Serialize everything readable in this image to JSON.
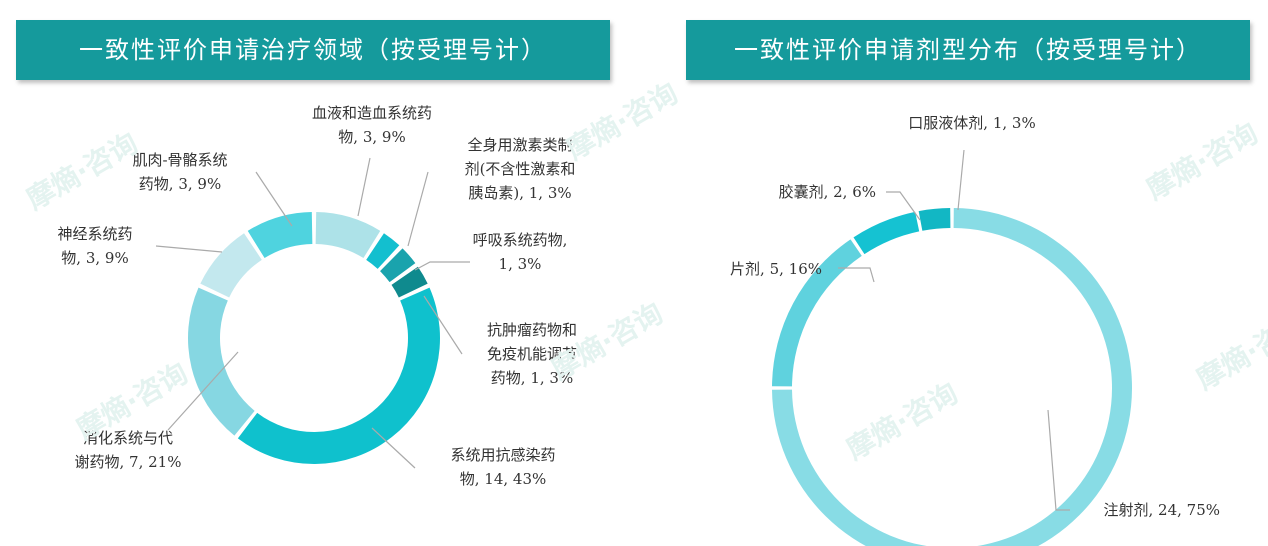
{
  "colors": {
    "banner": "#159a9c",
    "left_slices": [
      "#ade2e8",
      "#13bfcf",
      "#1aa3ad",
      "#0f8a8e",
      "#0fc1cd",
      "#86d7e2",
      "#c3e8ee",
      "#4fd3df"
    ],
    "right_slices": [
      "#88dce5",
      "#5fd2de",
      "#15c2d2",
      "#12b7c4"
    ],
    "leader": "#aaaaaa",
    "watermark": "#e4f3f0"
  },
  "watermark": {
    "text": "摩熵·咨询"
  },
  "chart_data": [
    {
      "type": "pie",
      "donut": true,
      "title": "一致性评价申请治疗领域（按受理号计）",
      "slices": [
        {
          "label_lines": [
            "血液和造血系统药",
            "物, 3, 9%"
          ],
          "value": 3,
          "percent": 9
        },
        {
          "label_lines": [
            "全身用激素类制",
            "剂(不含性激素和",
            "胰岛素), 1, 3%"
          ],
          "value": 1,
          "percent": 3
        },
        {
          "label_lines": [
            "呼吸系统药物,",
            "1, 3%"
          ],
          "value": 1,
          "percent": 3
        },
        {
          "label_lines": [
            "抗肿瘤药物和",
            "免疫机能调节",
            "药物, 1, 3%"
          ],
          "value": 1,
          "percent": 3
        },
        {
          "label_lines": [
            "系统用抗感染药",
            "物, 14, 43%"
          ],
          "value": 14,
          "percent": 43
        },
        {
          "label_lines": [
            "消化系统与代",
            "谢药物, 7, 21%"
          ],
          "value": 7,
          "percent": 21
        },
        {
          "label_lines": [
            "神经系统药",
            "物, 3, 9%"
          ],
          "value": 3,
          "percent": 9
        },
        {
          "label_lines": [
            "肌肉-骨骼系统",
            "药物, 3, 9%"
          ],
          "value": 3,
          "percent": 9
        }
      ]
    },
    {
      "type": "pie",
      "donut": true,
      "title": "一致性评价申请剂型分布（按受理号计）",
      "slices": [
        {
          "label_lines": [
            "注射剂, 24, 75%"
          ],
          "value": 24,
          "percent": 75
        },
        {
          "label_lines": [
            "片剂, 5, 16%"
          ],
          "value": 5,
          "percent": 16
        },
        {
          "label_lines": [
            "胶囊剂, 2, 6%"
          ],
          "value": 2,
          "percent": 6
        },
        {
          "label_lines": [
            "口服液体剂, 1, 3%"
          ],
          "value": 1,
          "percent": 3
        }
      ]
    }
  ]
}
